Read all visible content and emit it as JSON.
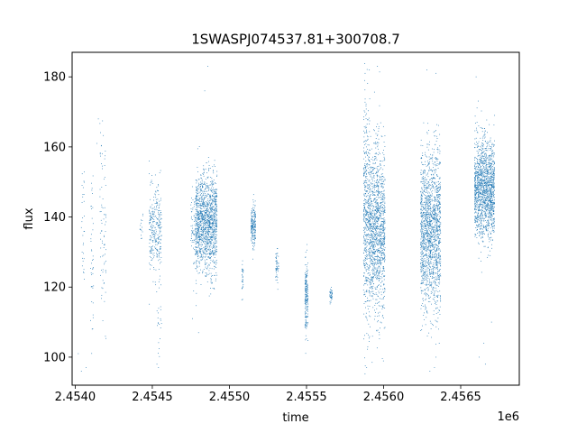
{
  "chart_data": {
    "type": "scatter",
    "title": "1SWASPJ074537.81+300708.7",
    "xlabel": "time",
    "ylabel": "flux",
    "x_offset_label": "1e6",
    "xlim": [
      2453980,
      2456880
    ],
    "ylim": [
      92,
      187
    ],
    "x_ticks": [
      2454000,
      2454500,
      2455000,
      2455500,
      2456000,
      2456500
    ],
    "x_tick_labels": [
      "2.4540",
      "2.4545",
      "2.4550",
      "2.4555",
      "2.4560",
      "2.4565"
    ],
    "y_ticks": [
      100,
      120,
      140,
      160,
      180
    ],
    "y_tick_labels": [
      "100",
      "120",
      "140",
      "160",
      "180"
    ],
    "grid": false,
    "point_color": "#1f77b4",
    "clusters": [
      {
        "x_start": 2454040,
        "x_end": 2454060,
        "y_center": 140,
        "y_spread": 10,
        "n": 30
      },
      {
        "x_start": 2454100,
        "x_end": 2454120,
        "y_center": 130,
        "y_spread": 12,
        "n": 40
      },
      {
        "x_start": 2454160,
        "x_end": 2454200,
        "y_center": 137,
        "y_spread": 14,
        "n": 80
      },
      {
        "x_start": 2454420,
        "x_end": 2454440,
        "y_center": 137,
        "y_spread": 2,
        "n": 15
      },
      {
        "x_start": 2454480,
        "x_end": 2454560,
        "y_center": 136,
        "y_spread": 6,
        "n": 300
      },
      {
        "x_start": 2454530,
        "x_end": 2454560,
        "y_center": 110,
        "y_spread": 8,
        "n": 20
      },
      {
        "x_start": 2454750,
        "x_end": 2454780,
        "y_center": 136,
        "y_spread": 6,
        "n": 60
      },
      {
        "x_start": 2454780,
        "x_end": 2454920,
        "y_center": 138,
        "y_spread": 7,
        "n": 1400
      },
      {
        "x_start": 2455140,
        "x_end": 2455170,
        "y_center": 137,
        "y_spread": 3,
        "n": 200
      },
      {
        "x_start": 2455080,
        "x_end": 2455090,
        "y_center": 122,
        "y_spread": 3,
        "n": 30
      },
      {
        "x_start": 2455300,
        "x_end": 2455320,
        "y_center": 126,
        "y_spread": 2,
        "n": 50
      },
      {
        "x_start": 2455490,
        "x_end": 2455510,
        "y_center": 118,
        "y_spread": 5,
        "n": 200
      },
      {
        "x_start": 2455650,
        "x_end": 2455670,
        "y_center": 118,
        "y_spread": 1.5,
        "n": 40
      },
      {
        "x_start": 2455870,
        "x_end": 2455910,
        "y_center": 140,
        "y_spread": 16,
        "n": 500
      },
      {
        "x_start": 2455910,
        "x_end": 2456010,
        "y_center": 136,
        "y_spread": 12,
        "n": 1200
      },
      {
        "x_start": 2456240,
        "x_end": 2456370,
        "y_center": 136,
        "y_spread": 11,
        "n": 1600
      },
      {
        "x_start": 2456590,
        "x_end": 2456720,
        "y_center": 148,
        "y_spread": 7,
        "n": 1500
      }
    ],
    "outliers": [
      {
        "x": 2454020,
        "y": 101
      },
      {
        "x": 2454040,
        "y": 96
      },
      {
        "x": 2454070,
        "y": 97
      },
      {
        "x": 2454110,
        "y": 108
      },
      {
        "x": 2454150,
        "y": 168
      },
      {
        "x": 2454140,
        "y": 161
      },
      {
        "x": 2454480,
        "y": 156
      },
      {
        "x": 2454520,
        "y": 152
      },
      {
        "x": 2454530,
        "y": 98
      },
      {
        "x": 2454540,
        "y": 97
      },
      {
        "x": 2454860,
        "y": 183
      },
      {
        "x": 2454840,
        "y": 176
      },
      {
        "x": 2454800,
        "y": 107
      },
      {
        "x": 2454760,
        "y": 111
      },
      {
        "x": 2455310,
        "y": 131
      },
      {
        "x": 2455880,
        "y": 181
      },
      {
        "x": 2455890,
        "y": 97
      },
      {
        "x": 2455960,
        "y": 183
      },
      {
        "x": 2455980,
        "y": 110
      },
      {
        "x": 2456280,
        "y": 182
      },
      {
        "x": 2456300,
        "y": 96
      },
      {
        "x": 2456330,
        "y": 97
      },
      {
        "x": 2456340,
        "y": 100
      },
      {
        "x": 2456340,
        "y": 181
      },
      {
        "x": 2456600,
        "y": 180
      },
      {
        "x": 2456620,
        "y": 100
      },
      {
        "x": 2456650,
        "y": 104
      },
      {
        "x": 2456660,
        "y": 98
      },
      {
        "x": 2456700,
        "y": 110
      },
      {
        "x": 2456720,
        "y": 169
      }
    ]
  }
}
